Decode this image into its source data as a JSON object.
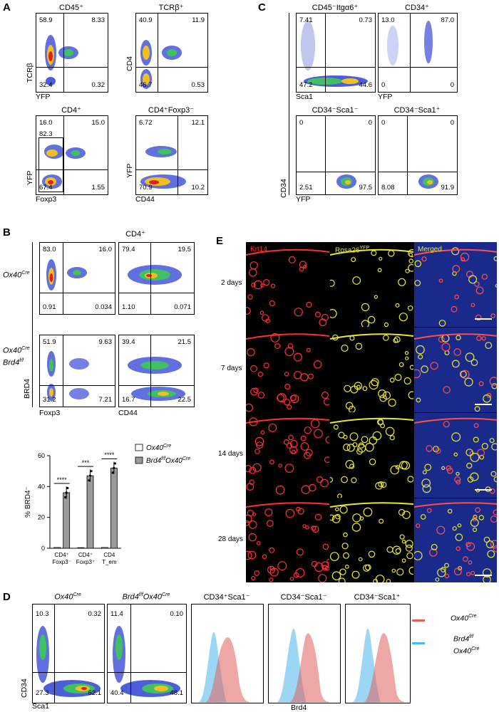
{
  "panelA": {
    "label": "A",
    "plots": [
      {
        "title": "CD45⁺",
        "y_label": "TCRβ",
        "x_label": "YFP",
        "q_tl": "58.9",
        "q_tr": "8.33",
        "q_bl": "32.4",
        "q_br": "0.32"
      },
      {
        "title": "TCRβ⁺",
        "y_label": "CD4",
        "x_label": "",
        "q_tl": "40.9",
        "q_tr": "11.9",
        "q_bl": "46.7",
        "q_br": "0.53"
      },
      {
        "title": "CD4⁺",
        "y_label": "YFP",
        "x_label": "Foxp3",
        "q_tl": "16.0",
        "q_tr": "15.0",
        "q_bl": "67.4",
        "q_br": "1.55",
        "gate_value": "82.3"
      },
      {
        "title": "CD4⁺Foxp3⁻",
        "y_label": "YFP",
        "x_label": "CD44",
        "q_tl": "6.72",
        "q_tr": "12.1",
        "q_bl": "70.9",
        "q_br": "10.2"
      }
    ]
  },
  "panelB": {
    "label": "B",
    "title": "CD4⁺",
    "row_labels": [
      "Ox40",
      "Cre",
      "Ox40",
      "Cre",
      "Brd4",
      "f/f"
    ],
    "y_label": "BRD4",
    "x_labels": [
      "Foxp3",
      "CD44"
    ],
    "plots": [
      {
        "q_tl": "83.0",
        "q_tr": "16.0",
        "q_bl": "0.91",
        "q_br": "0.034"
      },
      {
        "q_tl": "79.4",
        "q_tr": "19.5",
        "q_bl": "1.10",
        "q_br": "0.071"
      },
      {
        "q_tl": "51.9",
        "q_tr": "9.63",
        "q_bl": "31.2",
        "q_br": "7.21"
      },
      {
        "q_tl": "39.4",
        "q_tr": "21.5",
        "q_bl": "16.7",
        "q_br": "22.5"
      }
    ],
    "legend": [
      {
        "name": "Ox40",
        "sup": "Cre",
        "color": "#ffffff"
      },
      {
        "name": "Brd4",
        "sup": "f/f",
        "name2": "Ox40",
        "sup2": "Cre",
        "color": "#9a9a9a"
      }
    ],
    "sig": [
      "****",
      "***",
      "****"
    ]
  },
  "chart_data": {
    "type": "bar",
    "ylabel": "% BRD4⁻",
    "ylim": [
      0,
      60
    ],
    "yticks": [
      0,
      20,
      40,
      60
    ],
    "categories": [
      [
        "CD4⁺",
        "Foxp3⁻"
      ],
      [
        "CD4⁺",
        "Foxp3⁺"
      ],
      [
        "CD4",
        "T_em"
      ]
    ],
    "series": [
      {
        "name": "Ox40Cre",
        "values": [
          0.5,
          0.4,
          0.5
        ],
        "color": "#ffffff"
      },
      {
        "name": "Brd4f/fOx40Cre",
        "values": [
          36,
          47,
          52
        ],
        "color": "#9a9a9a"
      }
    ]
  },
  "panelC": {
    "label": "C",
    "plots": [
      {
        "title": "CD45⁻Itgα6⁺",
        "x_label": "Sca1",
        "q_tl": "7.41",
        "q_tr": "0.73",
        "q_bl": "47.2",
        "q_br": "44.6"
      },
      {
        "title": "CD34⁺",
        "x_label": "YFP",
        "q_tl": "13.0",
        "q_tr": "87.0",
        "q_bl": "0",
        "q_br": "0"
      },
      {
        "title": "CD34⁻Sca1⁻",
        "x_label": "YFP",
        "q_tl": "0",
        "q_tr": "0",
        "q_bl": "2.51",
        "q_br": "97.5"
      },
      {
        "title": "CD34⁻Sca1⁺",
        "x_label": "",
        "q_tl": "0",
        "q_tr": "0",
        "q_bl": "8.08",
        "q_br": "91.9"
      }
    ],
    "y_label": "CD34"
  },
  "panelD": {
    "label": "D",
    "dot_plots": [
      {
        "title": "Ox40",
        "title_sup": "Cre",
        "q_tl": "10.3",
        "q_tr": "0.32",
        "q_bl": "27.3",
        "q_br": "62.1"
      },
      {
        "title": "Brd4",
        "title_sup": "f/f",
        "title2": "Ox40",
        "title2_sup": "Cre",
        "q_tl": "11.4",
        "q_tr": "0.10",
        "q_bl": "40.4",
        "q_br": "48.1"
      }
    ],
    "y_label": "CD34",
    "x_label": "Sca1",
    "hist_titles": [
      "CD34⁺Sca1⁻",
      "CD34⁻Sca1⁻",
      "CD34⁻Sca1⁺"
    ],
    "hist_x_label": "Brd4",
    "legend": [
      {
        "name": "Ox40",
        "sup": "Cre",
        "color": "#e06060"
      },
      {
        "name": "Brd4",
        "sup": "f/f",
        "name2": "Ox40",
        "sup2": "Cre",
        "color": "#4ab8ee"
      }
    ]
  },
  "panelE": {
    "label": "E",
    "col_titles": [
      "Krt14",
      "Rosa26",
      "Merged"
    ],
    "col_title_sup": "YFP",
    "col_colors": [
      "#ff3030",
      "#e8e830",
      "#e8e830"
    ],
    "rows": [
      "2 days",
      "7 days",
      "14 days",
      "28 days"
    ]
  }
}
